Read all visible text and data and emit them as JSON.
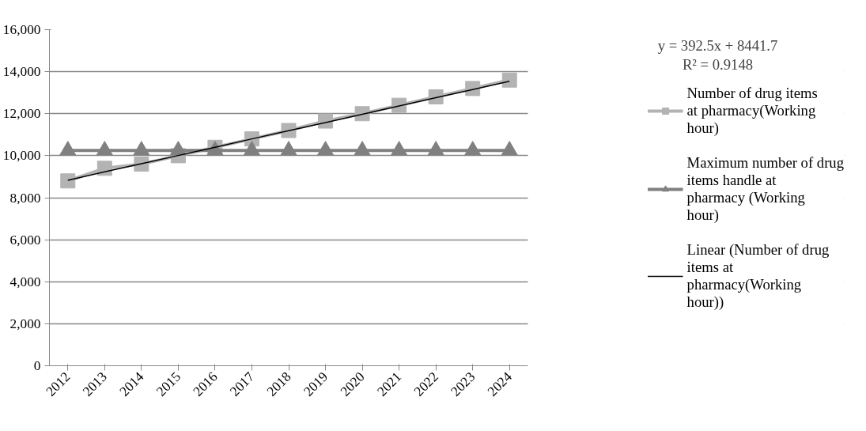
{
  "chart_data": {
    "type": "line",
    "categories": [
      "2012",
      "2013",
      "2014",
      "2015",
      "2016",
      "2017",
      "2018",
      "2019",
      "2020",
      "2021",
      "2022",
      "2023",
      "2024"
    ],
    "series": [
      {
        "name": "Number of drug items at pharmacy(Working hour)",
        "color": "#b3b3b3",
        "marker": "square",
        "values": [
          8800,
          9400,
          9600,
          10000,
          10400,
          10800,
          11200,
          11650,
          12000,
          12400,
          12800,
          13200,
          13600
        ]
      },
      {
        "name": "Maximum number of drug items handle at pharmacy (Working hour)",
        "color": "#808080",
        "marker": "triangle",
        "values": [
          10250,
          10250,
          10250,
          10250,
          10250,
          10250,
          10250,
          10250,
          10250,
          10250,
          10250,
          10250,
          10250
        ]
      },
      {
        "name": "Linear (Number of drug items at pharmacy(Working hour))",
        "color": "#000000",
        "values": [
          8830,
          9230,
          9620,
          10010,
          10400,
          10800,
          11190,
          11580,
          11970,
          12370,
          12760,
          13150,
          13540
        ]
      }
    ],
    "annotations": [
      "y = 392.5x + 8441.7",
      "R² = 0.9148"
    ],
    "ylim": [
      0,
      16000
    ],
    "yticks": [
      {
        "value": 0,
        "label": "0"
      },
      {
        "value": 2000,
        "label": "2,000"
      },
      {
        "value": 4000,
        "label": "4,000"
      },
      {
        "value": 6000,
        "label": "6,000"
      },
      {
        "value": 8000,
        "label": "8,000"
      },
      {
        "value": 10000,
        "label": "10,000"
      },
      {
        "value": 12000,
        "label": "12,000"
      },
      {
        "value": 14000,
        "label": "14,000"
      },
      {
        "value": 16000,
        "label": "16,000"
      }
    ],
    "grid": "y",
    "legend": "right"
  }
}
